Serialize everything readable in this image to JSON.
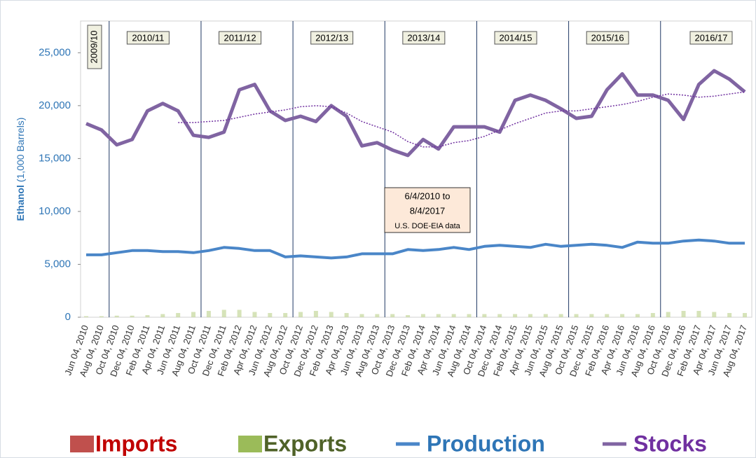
{
  "chart_data": {
    "type": "line",
    "y_label": {
      "bold": "Ethanol",
      "rest": "(1,000 Barrels)"
    },
    "annotation": [
      "6/4/2010 to",
      "8/4/2017",
      "U.S. DOE-EIA data"
    ],
    "periods": [
      "2009/10",
      "2010/11",
      "2011/12",
      "2012/13",
      "2013/14",
      "2014/15",
      "2015/16",
      "2016/17"
    ],
    "categories": [
      "Jun 04, 2010",
      "Aug 04, 2010",
      "Oct 04, 2010",
      "Dec 04, 2010",
      "Feb 04, 2011",
      "Apr 04, 2011",
      "Jun 04, 2011",
      "Aug 04, 2011",
      "Oct 04, 2011",
      "Dec 04, 2011",
      "Feb 04, 2012",
      "Apr 04, 2012",
      "Jun 04, 2012",
      "Aug 04, 2012",
      "Oct 04, 2012",
      "Dec 04, 2012",
      "Feb 04, 2013",
      "Apr 04, 2013",
      "Jun 04, 2013",
      "Aug 04, 2013",
      "Oct 04, 2013",
      "Dec 04, 2013",
      "Feb 04, 2014",
      "Apr 04, 2014",
      "Jun 04, 2014",
      "Aug 04, 2014",
      "Oct 04, 2014",
      "Dec 04, 2014",
      "Feb 04, 2015",
      "Apr 04, 2015",
      "Jun 04, 2015",
      "Aug 04, 2015",
      "Oct 04, 2015",
      "Dec 04, 2015",
      "Feb 04, 2016",
      "Apr 04, 2016",
      "Jun 04, 2016",
      "Aug 04, 2016",
      "Oct 04, 2016",
      "Dec 04, 2016",
      "Feb 04, 2017",
      "Apr 04, 2017",
      "Jun 04, 2017",
      "Aug 04, 2017"
    ],
    "series": [
      {
        "name": "Imports",
        "kind": "bar",
        "color": "#c0504d",
        "text_color": "#c00000",
        "values": [
          0,
          0,
          0,
          0,
          0,
          0,
          0,
          0,
          0,
          0,
          0,
          0,
          0,
          0,
          0,
          0,
          0,
          0,
          0,
          0,
          0,
          0,
          0,
          0,
          0,
          0,
          0,
          0,
          0,
          0,
          0,
          0,
          0,
          0,
          0,
          0,
          0,
          0,
          0,
          0,
          0,
          0,
          0,
          0
        ]
      },
      {
        "name": "Exports",
        "kind": "bar",
        "color": "#c4d79b",
        "text_color": "#4f6228",
        "values": [
          100,
          100,
          150,
          150,
          200,
          300,
          400,
          500,
          600,
          700,
          700,
          500,
          400,
          400,
          500,
          600,
          500,
          400,
          300,
          300,
          300,
          200,
          300,
          300,
          300,
          300,
          300,
          300,
          300,
          300,
          300,
          300,
          300,
          300,
          300,
          300,
          300,
          400,
          500,
          600,
          600,
          500,
          400,
          400
        ]
      },
      {
        "name": "Production",
        "kind": "line",
        "color": "#4a86c8",
        "text_color": "#2e75b6",
        "values": [
          5900,
          5900,
          6100,
          6300,
          6300,
          6200,
          6200,
          6100,
          6300,
          6600,
          6500,
          6300,
          6300,
          5700,
          5800,
          5700,
          5600,
          5700,
          6000,
          6000,
          6000,
          6400,
          6300,
          6400,
          6600,
          6400,
          6700,
          6800,
          6700,
          6600,
          6900,
          6700,
          6800,
          6900,
          6800,
          6600,
          7100,
          7000,
          7000,
          7200,
          7300,
          7200,
          7000,
          7000
        ]
      },
      {
        "name": "Stocks",
        "kind": "line",
        "color": "#8064a2",
        "text_color": "#7030a0",
        "values": [
          18300,
          17700,
          16300,
          16800,
          19500,
          20200,
          19500,
          17200,
          17000,
          17500,
          21500,
          22000,
          19500,
          18600,
          19000,
          18500,
          20000,
          19000,
          16200,
          16500,
          15800,
          15300,
          16800,
          15900,
          18000,
          18000,
          18000,
          17500,
          20500,
          21000,
          20500,
          19700,
          18800,
          19000,
          21500,
          23000,
          21000,
          21000,
          20500,
          18700,
          22000,
          23300,
          22500,
          21300
        ]
      }
    ],
    "trend": {
      "color": "#7030a0",
      "values": [
        null,
        null,
        null,
        null,
        null,
        null,
        18400,
        18400,
        18500,
        18600,
        18900,
        19200,
        19400,
        19600,
        19900,
        20000,
        19900,
        19300,
        18500,
        18000,
        17500,
        16600,
        16100,
        16100,
        16500,
        16700,
        17100,
        17700,
        18300,
        18800,
        19300,
        19500,
        19500,
        19700,
        19900,
        20100,
        20400,
        20800,
        21100,
        21000,
        20800,
        20900,
        21100,
        21300
      ]
    },
    "ylim": [
      0,
      28000
    ],
    "yticks": [
      0,
      {
        "value": 5000,
        "label": "5,000"
      },
      {
        "value": 10000,
        "label": "10,000"
      },
      {
        "value": 15000,
        "label": "15,000"
      },
      {
        "value": 20000,
        "label": "20,000"
      },
      {
        "value": 25000,
        "label": "25,000"
      }
    ]
  }
}
